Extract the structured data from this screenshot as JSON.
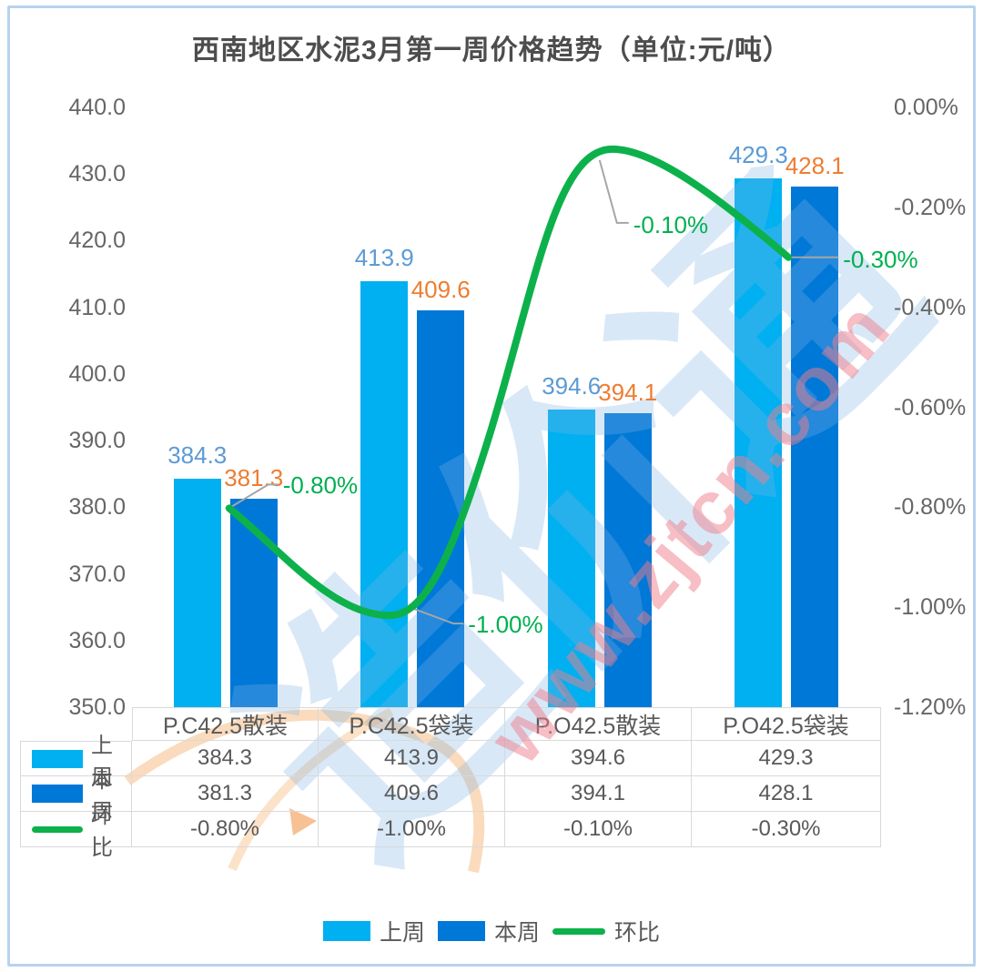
{
  "title": "西南地区水泥3月第一周价格趋势（单位:元/吨）",
  "chart_data": {
    "type": "bar",
    "subtype": "grouped-bars-with-line-combo",
    "categories": [
      "P.C42.5散装",
      "P.C42.5袋装",
      "P.O42.5散装",
      "P.O42.5袋装"
    ],
    "series": [
      {
        "name": "上周",
        "type": "bar",
        "axis": "left",
        "color": "#00b0f0",
        "label_color": "#5b9bd5",
        "values": [
          384.3,
          413.9,
          394.6,
          429.3
        ]
      },
      {
        "name": "本周",
        "type": "bar",
        "axis": "left",
        "color": "#0078d7",
        "label_color": "#ed7d31",
        "values": [
          381.3,
          409.6,
          394.1,
          428.1
        ]
      },
      {
        "name": "环比",
        "type": "line",
        "axis": "right",
        "color": "#0db14b",
        "label_color": "#00b050",
        "values": [
          -0.8,
          -1.0,
          -0.1,
          -0.3
        ],
        "labels": [
          "-0.80%",
          "-1.00%",
          "-0.10%",
          "-0.30%"
        ]
      }
    ],
    "title": "西南地区水泥3月第一周价格趋势（单位:元/吨）",
    "xlabel": "",
    "ylabel": "",
    "left_axis": {
      "min": 350,
      "max": 440,
      "step": 10,
      "ticks": [
        "440.0",
        "430.0",
        "420.0",
        "410.0",
        "400.0",
        "390.0",
        "380.0",
        "370.0",
        "360.0",
        "350.0"
      ]
    },
    "right_axis": {
      "min": -1.2,
      "max": 0,
      "step": 0.2,
      "ticks": [
        "0.00%",
        "-0.20%",
        "-0.40%",
        "-0.60%",
        "-0.80%",
        "-1.00%",
        "-1.20%"
      ]
    },
    "grid": false,
    "legend_position": "bottom",
    "legend": [
      "上周",
      "本周",
      "环比"
    ]
  },
  "table": {
    "columns": [
      "P.C42.5散装",
      "P.C42.5袋装",
      "P.O42.5散装",
      "P.O42.5袋装"
    ],
    "row_headers": [
      "上周",
      "本周",
      "环比"
    ],
    "rows": [
      [
        "384.3",
        "413.9",
        "394.6",
        "429.3"
      ],
      [
        "381.3",
        "409.6",
        "394.1",
        "428.1"
      ],
      [
        "-0.80%",
        "-1.00%",
        "-0.10%",
        "-0.30%"
      ]
    ]
  },
  "watermark": {
    "url_text": "www.zjtcn.com",
    "logo_text": "造价通"
  },
  "colors": {
    "bar_last_week": "#00b0f0",
    "bar_this_week": "#0078d7",
    "line_mom": "#0db14b",
    "label_last_week": "#5b9bd5",
    "label_this_week": "#ed7d31",
    "label_mom": "#00b050",
    "axis_text": "#666666",
    "table_text": "#595959",
    "table_border": "#d9d9d9",
    "frame_border": "#b7d3ed",
    "connector": "#a6a6a6"
  }
}
